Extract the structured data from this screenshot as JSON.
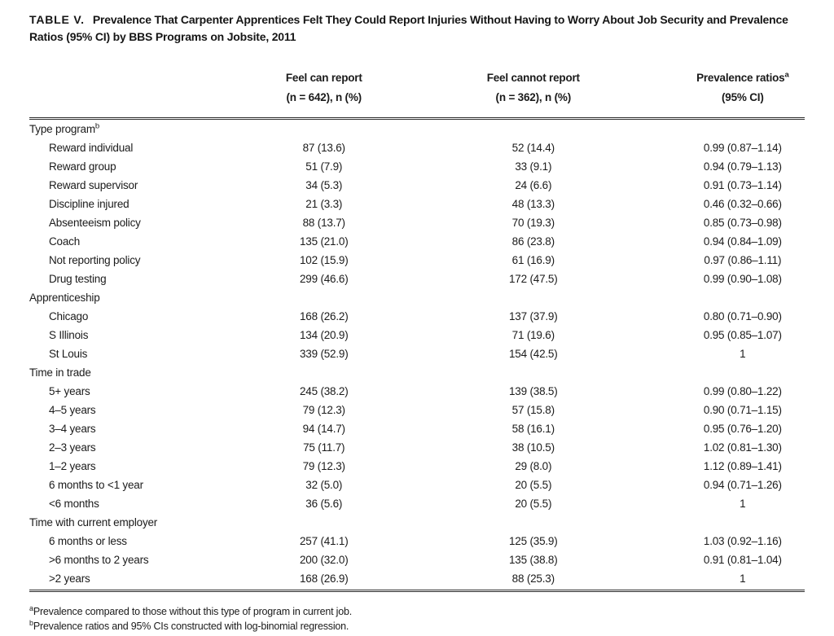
{
  "title": {
    "label": "TABLE V.",
    "text": "Prevalence That Carpenter Apprentices Felt They Could Report Injuries Without Having to Worry About Job Security and Prevalence Ratios (95% CI) by BBS Programs on Jobsite, 2011"
  },
  "table": {
    "columns": [
      {
        "line1": "",
        "line2": ""
      },
      {
        "line1": "Feel can report",
        "line2": "(n = 642), n (%)"
      },
      {
        "line1": "Feel cannot report",
        "line2": "(n = 362), n (%)"
      },
      {
        "line1": "Prevalence ratios",
        "sup": "a",
        "line2": "(95% CI)"
      }
    ],
    "rows": [
      {
        "type": "section",
        "label": "Type program",
        "sup": "b"
      },
      {
        "type": "data",
        "label": "Reward individual",
        "can": "87 (13.6)",
        "cannot": "52 (14.4)",
        "pr": "0.99 (0.87–1.14)"
      },
      {
        "type": "data",
        "label": "Reward group",
        "can": "51 (7.9)",
        "cannot": "33 (9.1)",
        "pr": "0.94 (0.79–1.13)"
      },
      {
        "type": "data",
        "label": "Reward supervisor",
        "can": "34 (5.3)",
        "cannot": "24 (6.6)",
        "pr": "0.91 (0.73–1.14)"
      },
      {
        "type": "data",
        "label": "Discipline injured",
        "can": "21 (3.3)",
        "cannot": "48 (13.3)",
        "pr": "0.46 (0.32–0.66)"
      },
      {
        "type": "data",
        "label": "Absenteeism policy",
        "can": "88 (13.7)",
        "cannot": "70 (19.3)",
        "pr": "0.85 (0.73–0.98)"
      },
      {
        "type": "data",
        "label": "Coach",
        "can": "135 (21.0)",
        "cannot": "86 (23.8)",
        "pr": "0.94 (0.84–1.09)"
      },
      {
        "type": "data",
        "label": "Not reporting policy",
        "can": "102 (15.9)",
        "cannot": "61 (16.9)",
        "pr": "0.97 (0.86–1.11)"
      },
      {
        "type": "data",
        "label": "Drug testing",
        "can": "299 (46.6)",
        "cannot": "172 (47.5)",
        "pr": "0.99 (0.90–1.08)"
      },
      {
        "type": "section",
        "label": "Apprenticeship"
      },
      {
        "type": "data",
        "label": "Chicago",
        "can": "168 (26.2)",
        "cannot": "137 (37.9)",
        "pr": "0.80 (0.71–0.90)"
      },
      {
        "type": "data",
        "label": "S Illinois",
        "can": "134 (20.9)",
        "cannot": "71 (19.6)",
        "pr": "0.95 (0.85–1.07)"
      },
      {
        "type": "data",
        "label": "St Louis",
        "can": "339 (52.9)",
        "cannot": "154 (42.5)",
        "pr": "1"
      },
      {
        "type": "section",
        "label": "Time in trade"
      },
      {
        "type": "data",
        "label": "5+ years",
        "can": "245 (38.2)",
        "cannot": "139 (38.5)",
        "pr": "0.99 (0.80–1.22)"
      },
      {
        "type": "data",
        "label": "4–5 years",
        "can": "79 (12.3)",
        "cannot": "57 (15.8)",
        "pr": "0.90 (0.71–1.15)"
      },
      {
        "type": "data",
        "label": "3–4 years",
        "can": "94 (14.7)",
        "cannot": "58 (16.1)",
        "pr": "0.95 (0.76–1.20)"
      },
      {
        "type": "data",
        "label": "2–3 years",
        "can": "75 (11.7)",
        "cannot": "38 (10.5)",
        "pr": "1.02 (0.81–1.30)"
      },
      {
        "type": "data",
        "label": "1–2 years",
        "can": "79 (12.3)",
        "cannot": "29 (8.0)",
        "pr": "1.12 (0.89–1.41)"
      },
      {
        "type": "data",
        "label": "6 months to <1 year",
        "can": "32 (5.0)",
        "cannot": "20 (5.5)",
        "pr": "0.94 (0.71–1.26)"
      },
      {
        "type": "data",
        "label": "<6 months",
        "can": "36 (5.6)",
        "cannot": "20 (5.5)",
        "pr": "1"
      },
      {
        "type": "section",
        "label": "Time with current employer"
      },
      {
        "type": "data",
        "label": "6 months or less",
        "can": "257 (41.1)",
        "cannot": "125 (35.9)",
        "pr": "1.03 (0.92–1.16)"
      },
      {
        "type": "data",
        "label": ">6 months to 2 years",
        "can": "200 (32.0)",
        "cannot": "135 (38.8)",
        "pr": "0.91 (0.81–1.04)"
      },
      {
        "type": "data",
        "label": ">2 years",
        "can": "168 (26.9)",
        "cannot": "88 (25.3)",
        "pr": "1"
      }
    ]
  },
  "footnotes": [
    {
      "sup": "a",
      "text": "Prevalence compared to those without this type of program in current job."
    },
    {
      "sup": "b",
      "text": "Prevalence ratios and 95% CIs constructed with log-binomial regression."
    }
  ]
}
